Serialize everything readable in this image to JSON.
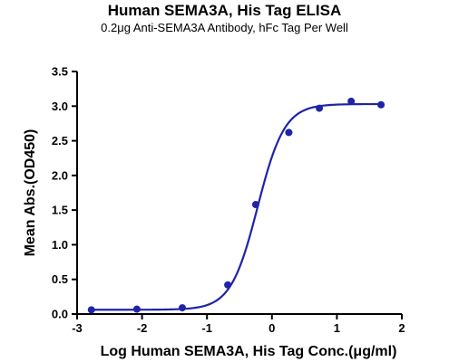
{
  "chart_data": {
    "type": "scatter",
    "title": "Human SEMA3A, His Tag ELISA",
    "subtitle": "0.2μg Anti-SEMA3A Antibody, hFc Tag Per Well",
    "xlabel": "Log Human SEMA3A, His Tag Conc.(μg/ml)",
    "ylabel": "Mean Abs.(OD450)",
    "xlim": [
      -3,
      2
    ],
    "ylim": [
      0,
      3.5
    ],
    "xticks": [
      "-3",
      "-2",
      "-1",
      "0",
      "1",
      "2"
    ],
    "yticks": [
      "0.0",
      "0.5",
      "1.0",
      "1.5",
      "2.0",
      "2.5",
      "3.0",
      "3.5"
    ],
    "grid": false,
    "series": [
      {
        "x": [
          -2.78,
          -2.08,
          -1.38,
          -0.68,
          -0.25,
          0.26,
          0.73,
          1.22,
          1.68
        ],
        "y": [
          0.06,
          0.07,
          0.09,
          0.42,
          1.58,
          2.62,
          2.97,
          3.07,
          3.02
        ]
      }
    ],
    "fit": {
      "bottom": 0.062,
      "top": 3.03,
      "log_ec50": -0.22,
      "hill_slope": 2.1
    },
    "color": "#1f24a6"
  }
}
